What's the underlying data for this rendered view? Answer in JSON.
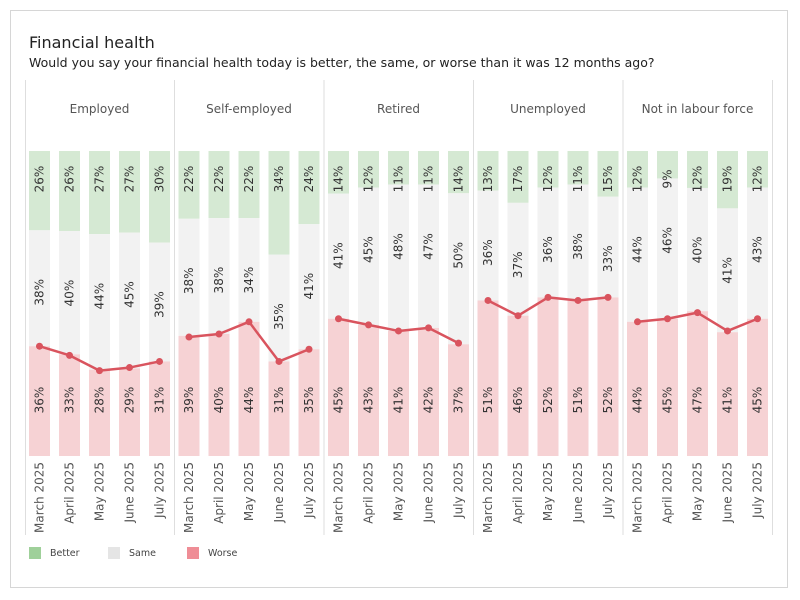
{
  "title": "Financial health",
  "subtitle": "Would you say your financial health today is better, the same, or worse than it was 12 months ago?",
  "colors": {
    "better": "#d5e9d3",
    "same": "#f2f2f2",
    "worse": "#f6d2d4",
    "line": "#d9545e",
    "legend_better": "#9fd09a",
    "legend_same": "#e5e5e5",
    "legend_worse": "#ef8d96"
  },
  "legend": [
    {
      "key": "better",
      "label": "Better"
    },
    {
      "key": "same",
      "label": "Same"
    },
    {
      "key": "worse",
      "label": "Worse"
    }
  ],
  "chart_data": {
    "type": "bar",
    "stacked": true,
    "percent_scale": [
      0,
      100
    ],
    "overlay_line": "worse",
    "categories": [
      "March 2025",
      "April 2025",
      "May 2025",
      "June 2025",
      "July 2025"
    ],
    "panels": [
      {
        "name": "Employed",
        "better": [
          26,
          26,
          27,
          27,
          30
        ],
        "same": [
          38,
          40,
          44,
          45,
          39
        ],
        "worse": [
          36,
          33,
          28,
          29,
          31
        ]
      },
      {
        "name": "Self-employed",
        "better": [
          22,
          22,
          22,
          34,
          24
        ],
        "same": [
          38,
          38,
          34,
          35,
          41
        ],
        "worse": [
          39,
          40,
          44,
          31,
          35
        ]
      },
      {
        "name": "Retired",
        "better": [
          14,
          12,
          11,
          11,
          14
        ],
        "same": [
          41,
          45,
          48,
          47,
          50
        ],
        "worse": [
          45,
          43,
          41,
          42,
          37
        ]
      },
      {
        "name": "Unemployed",
        "better": [
          13,
          17,
          12,
          11,
          15
        ],
        "same": [
          36,
          37,
          36,
          38,
          33
        ],
        "worse": [
          51,
          46,
          52,
          51,
          52
        ]
      },
      {
        "name": "Not in labour force",
        "better": [
          12,
          9,
          12,
          19,
          12
        ],
        "same": [
          44,
          46,
          40,
          41,
          43
        ],
        "worse": [
          44,
          45,
          47,
          41,
          45
        ]
      }
    ]
  }
}
